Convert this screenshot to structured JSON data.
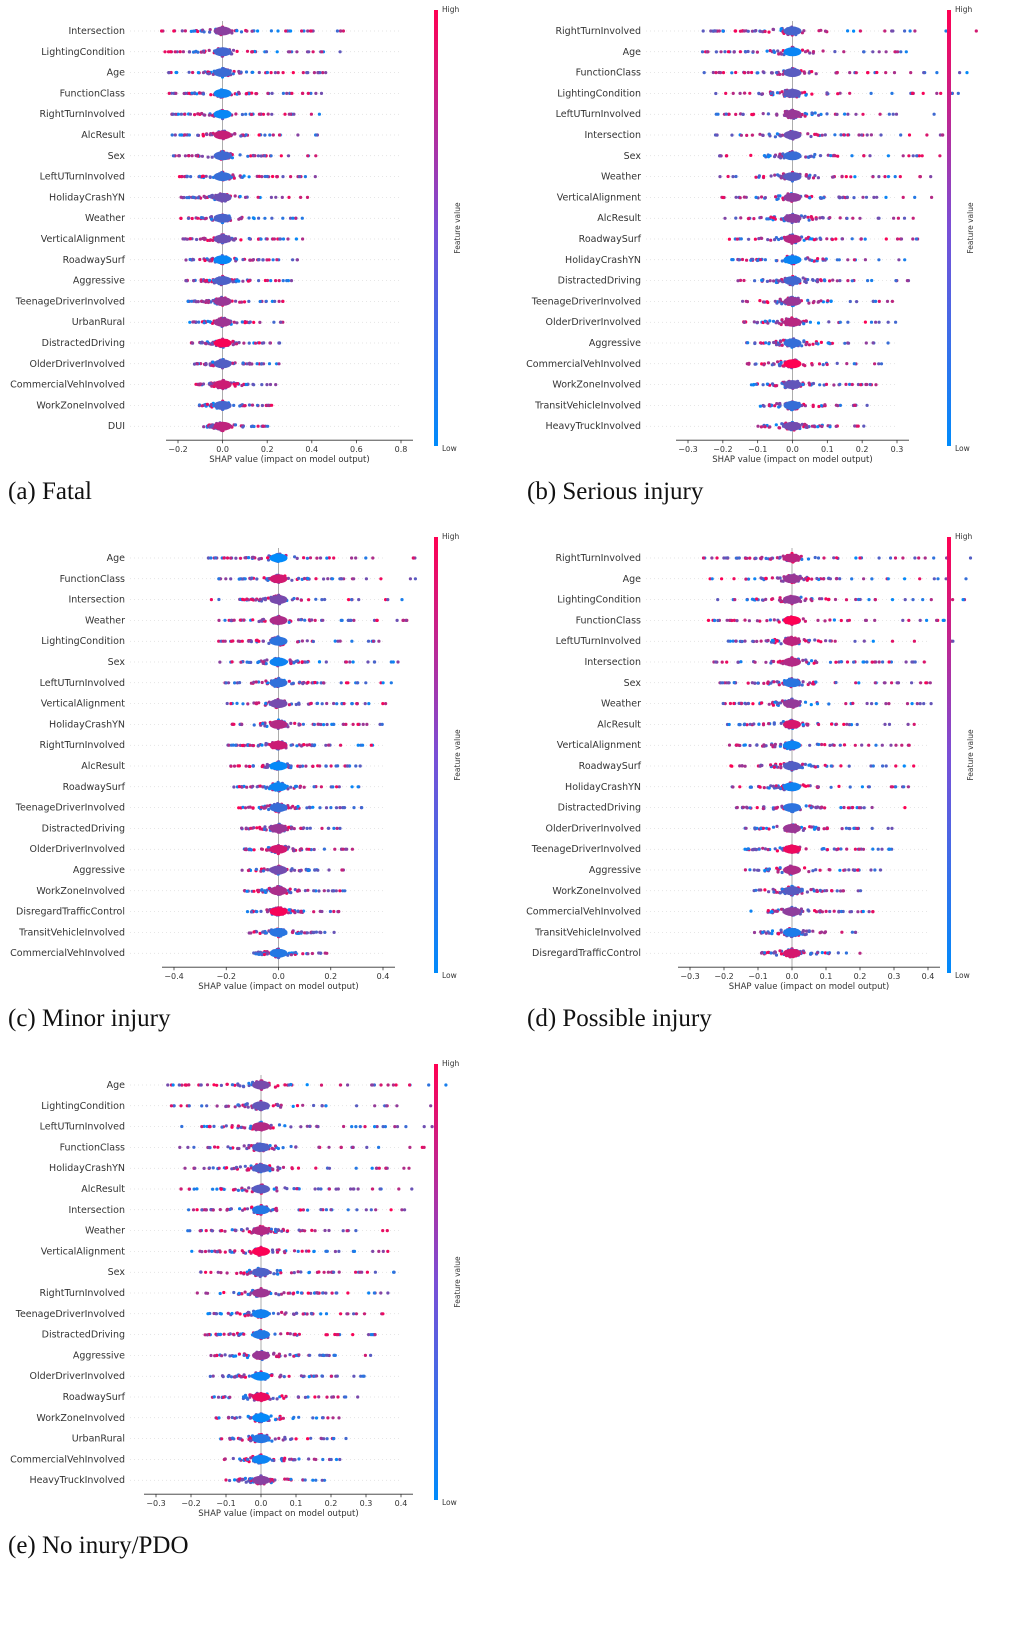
{
  "colors": {
    "high": "#ff0052",
    "low": "#008bfb",
    "axis": "#333333"
  },
  "colorbar": {
    "high_label": "High",
    "low_label": "Low",
    "title": "Feature value"
  },
  "xlabel": "SHAP value (impact on model output)",
  "chart_data": [
    {
      "type": "scatter",
      "caption": "(a)  Fatal",
      "xlabel": "SHAP value (impact on model output)",
      "xlim": [
        -0.3,
        0.8
      ],
      "xticks": [
        -0.2,
        0.0,
        0.2,
        0.4,
        0.6,
        0.8
      ],
      "xtick_labels": [
        "−0.2",
        "0.0",
        "0.2",
        "0.4",
        "0.6",
        "0.8"
      ],
      "features": [
        "Intersection",
        "LightingCondition",
        "Age",
        "FunctionClass",
        "RightTurnInvolved",
        "AlcResult",
        "Sex",
        "LeftUTurnInvolved",
        "HolidayCrashYN",
        "Weather",
        "VerticalAlignment",
        "RoadwaySurf",
        "Aggressive",
        "TeenageDriverInvolved",
        "UrbanRural",
        "DistractedDriving",
        "OlderDriverInvolved",
        "CommercialVehInvolved",
        "WorkZoneInvolved",
        "DUI"
      ]
    },
    {
      "type": "scatter",
      "caption": "(b)  Serious injury",
      "xlabel": "SHAP value (impact on model output)",
      "xlim": [
        -0.35,
        0.38
      ],
      "xticks": [
        -0.3,
        -0.2,
        -0.1,
        0.0,
        0.1,
        0.2,
        0.3
      ],
      "xtick_labels": [
        "−0.3",
        "−0.2",
        "−0.1",
        "0.0",
        "0.1",
        "0.2",
        "0.3"
      ],
      "features": [
        "RightTurnInvolved",
        "Age",
        "FunctionClass",
        "LightingCondition",
        "LeftUTurnInvolved",
        "Intersection",
        "Sex",
        "Weather",
        "VerticalAlignment",
        "AlcResult",
        "RoadwaySurf",
        "HolidayCrashYN",
        "DistractedDriving",
        "TeenageDriverInvolved",
        "OlderDriverInvolved",
        "Aggressive",
        "CommercialVehInvolved",
        "WorkZoneInvolved",
        "TransitVehicleInvolved",
        "HeavyTruckInvolved"
      ]
    },
    {
      "type": "scatter",
      "caption": "(c)  Minor injury",
      "xlabel": "SHAP value (impact on model output)",
      "xlim": [
        -0.5,
        0.5
      ],
      "xticks": [
        -0.4,
        -0.2,
        0.0,
        0.2,
        0.4
      ],
      "xtick_labels": [
        "−0.4",
        "−0.2",
        "0.0",
        "0.2",
        "0.4"
      ],
      "features": [
        "Age",
        "FunctionClass",
        "Intersection",
        "Weather",
        "LightingCondition",
        "Sex",
        "LeftUTurnInvolved",
        "VerticalAlignment",
        "HolidayCrashYN",
        "RightTurnInvolved",
        "AlcResult",
        "RoadwaySurf",
        "TeenageDriverInvolved",
        "DistractedDriving",
        "OlderDriverInvolved",
        "Aggressive",
        "WorkZoneInvolved",
        "DisregardTrafficControl",
        "TransitVehicleInvolved",
        "CommercialVehInvolved"
      ]
    },
    {
      "type": "scatter",
      "caption": "(d)  Possible injury",
      "xlabel": "SHAP value (impact on model output)",
      "xlim": [
        -0.35,
        0.42
      ],
      "xticks": [
        -0.3,
        -0.2,
        -0.1,
        0.0,
        0.1,
        0.2,
        0.3,
        0.4
      ],
      "xtick_labels": [
        "−0.3",
        "−0.2",
        "−0.1",
        "0.0",
        "0.1",
        "0.2",
        "0.3",
        "0.4"
      ],
      "features": [
        "RightTurnInvolved",
        "Age",
        "LightingCondition",
        "FunctionClass",
        "LeftUTurnInvolved",
        "Intersection",
        "Sex",
        "Weather",
        "AlcResult",
        "VerticalAlignment",
        "RoadwaySurf",
        "HolidayCrashYN",
        "DistractedDriving",
        "OlderDriverInvolved",
        "TeenageDriverInvolved",
        "Aggressive",
        "WorkZoneInvolved",
        "CommercialVehInvolved",
        "TransitVehicleInvolved",
        "DisregardTrafficControl"
      ]
    },
    {
      "type": "scatter",
      "caption": "(e)  No inury/PDO",
      "xlabel": "SHAP value (impact on model output)",
      "xlim": [
        -0.35,
        0.42
      ],
      "xticks": [
        -0.3,
        -0.2,
        -0.1,
        0.0,
        0.1,
        0.2,
        0.3,
        0.4
      ],
      "xtick_labels": [
        "−0.3",
        "−0.2",
        "−0.1",
        "0.0",
        "0.1",
        "0.2",
        "0.3",
        "0.4"
      ],
      "features": [
        "Age",
        "LightingCondition",
        "LeftUTurnInvolved",
        "FunctionClass",
        "HolidayCrashYN",
        "AlcResult",
        "Intersection",
        "Weather",
        "VerticalAlignment",
        "Sex",
        "RightTurnInvolved",
        "TeenageDriverInvolved",
        "DistractedDriving",
        "Aggressive",
        "OlderDriverInvolved",
        "RoadwaySurf",
        "WorkZoneInvolved",
        "UrbanRural",
        "CommercialVehInvolved",
        "HeavyTruckInvolved"
      ]
    }
  ]
}
